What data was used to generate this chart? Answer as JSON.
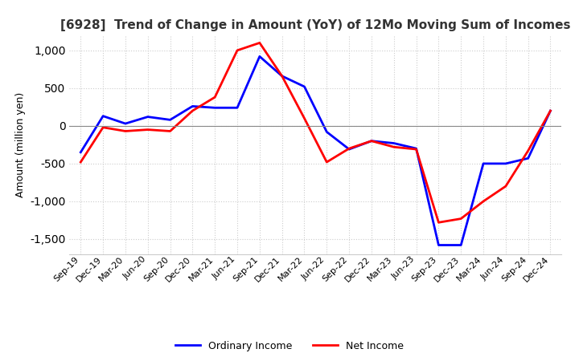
{
  "title": "[6928]  Trend of Change in Amount (YoY) of 12Mo Moving Sum of Incomes",
  "ylabel": "Amount (million yen)",
  "x_labels": [
    "Sep-19",
    "Dec-19",
    "Mar-20",
    "Jun-20",
    "Sep-20",
    "Dec-20",
    "Mar-21",
    "Jun-21",
    "Sep-21",
    "Dec-21",
    "Mar-22",
    "Jun-22",
    "Sep-22",
    "Dec-22",
    "Mar-23",
    "Jun-23",
    "Sep-23",
    "Dec-23",
    "Mar-24",
    "Jun-24",
    "Sep-24",
    "Dec-24"
  ],
  "ordinary_income": [
    -350,
    130,
    30,
    120,
    80,
    260,
    240,
    240,
    920,
    660,
    520,
    -80,
    -310,
    -200,
    -230,
    -300,
    -1580,
    -1580,
    -500,
    -500,
    -430,
    200
  ],
  "net_income": [
    -480,
    -20,
    -70,
    -50,
    -70,
    200,
    380,
    1000,
    1100,
    660,
    100,
    -480,
    -300,
    -200,
    -280,
    -310,
    -1280,
    -1230,
    -1000,
    -800,
    -330,
    200
  ],
  "ordinary_color": "#0000ff",
  "net_color": "#ff0000",
  "ylim": [
    -1700,
    1200
  ],
  "yticks": [
    -1500,
    -1000,
    -500,
    0,
    500,
    1000
  ],
  "grid_color": "#cccccc",
  "grid_style": "dotted",
  "background_color": "#ffffff",
  "title_fontsize": 11,
  "line_width": 2.0
}
